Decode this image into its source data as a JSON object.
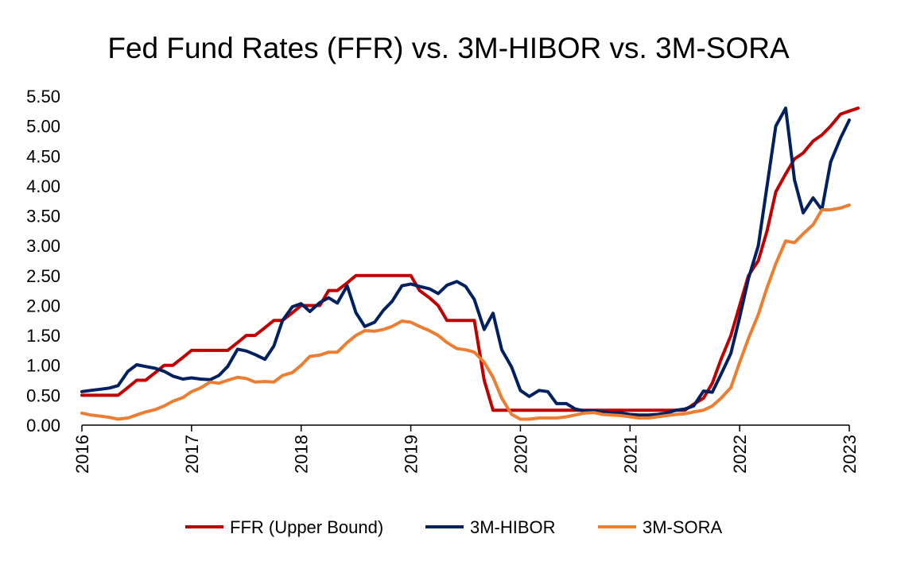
{
  "chart_data": {
    "type": "line",
    "title": "Fed Fund Rates (FFR) vs. 3M-HIBOR vs. 3M-SORA",
    "xlabel": "",
    "ylabel": "",
    "ylim": [
      0,
      5.5
    ],
    "yticks": [
      "0.00",
      "0.50",
      "1.00",
      "1.50",
      "2.00",
      "2.50",
      "3.00",
      "3.50",
      "4.00",
      "4.50",
      "5.00",
      "5.50"
    ],
    "xlim": [
      2016,
      2023
    ],
    "xticks": [
      "2016",
      "2017",
      "2018",
      "2019",
      "2020",
      "2021",
      "2022",
      "2023"
    ],
    "grid": false,
    "legend_position": "bottom",
    "series": [
      {
        "name": "FFR (Upper Bound)",
        "color": "#C00000",
        "points": [
          [
            2016.0,
            0.5
          ],
          [
            2016.33,
            0.5
          ],
          [
            2016.42,
            0.63
          ],
          [
            2016.5,
            0.75
          ],
          [
            2016.58,
            0.75
          ],
          [
            2016.67,
            0.88
          ],
          [
            2016.75,
            1.0
          ],
          [
            2016.83,
            1.0
          ],
          [
            2016.92,
            1.13
          ],
          [
            2017.0,
            1.25
          ],
          [
            2017.33,
            1.25
          ],
          [
            2017.42,
            1.38
          ],
          [
            2017.5,
            1.5
          ],
          [
            2017.58,
            1.5
          ],
          [
            2017.67,
            1.63
          ],
          [
            2017.75,
            1.75
          ],
          [
            2017.83,
            1.75
          ],
          [
            2017.92,
            1.88
          ],
          [
            2018.0,
            2.0
          ],
          [
            2018.17,
            2.0
          ],
          [
            2018.25,
            2.25
          ],
          [
            2018.33,
            2.25
          ],
          [
            2018.42,
            2.38
          ],
          [
            2018.5,
            2.5
          ],
          [
            2019.0,
            2.5
          ],
          [
            2019.08,
            2.25
          ],
          [
            2019.17,
            2.13
          ],
          [
            2019.25,
            2.0
          ],
          [
            2019.33,
            1.75
          ],
          [
            2019.58,
            1.75
          ],
          [
            2019.67,
            0.75
          ],
          [
            2019.75,
            0.25
          ],
          [
            2021.5,
            0.25
          ],
          [
            2021.58,
            0.35
          ],
          [
            2021.67,
            0.45
          ],
          [
            2021.75,
            0.7
          ],
          [
            2021.83,
            1.1
          ],
          [
            2021.92,
            1.5
          ],
          [
            2022.0,
            2.0
          ],
          [
            2022.08,
            2.5
          ],
          [
            2022.17,
            2.75
          ],
          [
            2022.25,
            3.25
          ],
          [
            2022.33,
            3.9
          ],
          [
            2022.42,
            4.2
          ],
          [
            2022.5,
            4.45
          ],
          [
            2022.58,
            4.55
          ],
          [
            2022.67,
            4.75
          ],
          [
            2022.75,
            4.85
          ],
          [
            2022.83,
            5.0
          ],
          [
            2022.92,
            5.2
          ],
          [
            2023.0,
            5.25
          ],
          [
            2023.08,
            5.3
          ]
        ]
      },
      {
        "name": "3M-HIBOR",
        "color": "#002060",
        "points": [
          [
            2016.0,
            0.56
          ],
          [
            2016.08,
            0.58
          ],
          [
            2016.17,
            0.6
          ],
          [
            2016.25,
            0.62
          ],
          [
            2016.33,
            0.66
          ],
          [
            2016.42,
            0.9
          ],
          [
            2016.5,
            1.01
          ],
          [
            2016.58,
            0.98
          ],
          [
            2016.67,
            0.95
          ],
          [
            2016.75,
            0.9
          ],
          [
            2016.83,
            0.82
          ],
          [
            2016.92,
            0.77
          ],
          [
            2017.0,
            0.79
          ],
          [
            2017.08,
            0.77
          ],
          [
            2017.17,
            0.76
          ],
          [
            2017.25,
            0.83
          ],
          [
            2017.33,
            0.98
          ],
          [
            2017.42,
            1.27
          ],
          [
            2017.5,
            1.24
          ],
          [
            2017.58,
            1.18
          ],
          [
            2017.67,
            1.1
          ],
          [
            2017.75,
            1.32
          ],
          [
            2017.83,
            1.75
          ],
          [
            2017.92,
            1.98
          ],
          [
            2018.0,
            2.03
          ],
          [
            2018.08,
            1.9
          ],
          [
            2018.17,
            2.05
          ],
          [
            2018.25,
            2.13
          ],
          [
            2018.33,
            2.04
          ],
          [
            2018.42,
            2.33
          ],
          [
            2018.5,
            1.88
          ],
          [
            2018.58,
            1.65
          ],
          [
            2018.67,
            1.72
          ],
          [
            2018.75,
            1.92
          ],
          [
            2018.83,
            2.07
          ],
          [
            2018.92,
            2.33
          ],
          [
            2019.0,
            2.36
          ],
          [
            2019.08,
            2.32
          ],
          [
            2019.17,
            2.28
          ],
          [
            2019.25,
            2.2
          ],
          [
            2019.33,
            2.34
          ],
          [
            2019.42,
            2.4
          ],
          [
            2019.5,
            2.32
          ],
          [
            2019.58,
            2.1
          ],
          [
            2019.67,
            1.6
          ],
          [
            2019.75,
            1.87
          ],
          [
            2019.83,
            1.26
          ],
          [
            2019.92,
            0.97
          ],
          [
            2020.0,
            0.58
          ],
          [
            2020.08,
            0.48
          ],
          [
            2020.17,
            0.58
          ],
          [
            2020.25,
            0.56
          ],
          [
            2020.33,
            0.36
          ],
          [
            2020.42,
            0.36
          ],
          [
            2020.5,
            0.27
          ],
          [
            2020.58,
            0.24
          ],
          [
            2020.67,
            0.24
          ],
          [
            2020.75,
            0.22
          ],
          [
            2020.83,
            0.2
          ],
          [
            2020.92,
            0.2
          ],
          [
            2021.0,
            0.18
          ],
          [
            2021.08,
            0.17
          ],
          [
            2021.17,
            0.17
          ],
          [
            2021.25,
            0.18
          ],
          [
            2021.33,
            0.2
          ],
          [
            2021.42,
            0.25
          ],
          [
            2021.5,
            0.27
          ],
          [
            2021.58,
            0.32
          ],
          [
            2021.67,
            0.57
          ],
          [
            2021.75,
            0.55
          ],
          [
            2021.83,
            0.85
          ],
          [
            2021.92,
            1.2
          ],
          [
            2022.0,
            1.8
          ],
          [
            2022.08,
            2.45
          ],
          [
            2022.17,
            3.0
          ],
          [
            2022.25,
            4.0
          ],
          [
            2022.33,
            5.0
          ],
          [
            2022.42,
            5.3
          ],
          [
            2022.5,
            4.1
          ],
          [
            2022.58,
            3.55
          ],
          [
            2022.67,
            3.8
          ],
          [
            2022.75,
            3.6
          ],
          [
            2022.83,
            4.4
          ],
          [
            2022.92,
            4.8
          ],
          [
            2023.0,
            5.1
          ]
        ]
      },
      {
        "name": "3M-SORA",
        "color": "#ED7D31",
        "points": [
          [
            2016.0,
            0.2
          ],
          [
            2016.08,
            0.17
          ],
          [
            2016.17,
            0.15
          ],
          [
            2016.25,
            0.13
          ],
          [
            2016.33,
            0.1
          ],
          [
            2016.42,
            0.12
          ],
          [
            2016.5,
            0.17
          ],
          [
            2016.58,
            0.22
          ],
          [
            2016.67,
            0.26
          ],
          [
            2016.75,
            0.32
          ],
          [
            2016.83,
            0.4
          ],
          [
            2016.92,
            0.46
          ],
          [
            2017.0,
            0.56
          ],
          [
            2017.08,
            0.62
          ],
          [
            2017.17,
            0.72
          ],
          [
            2017.25,
            0.7
          ],
          [
            2017.33,
            0.75
          ],
          [
            2017.42,
            0.8
          ],
          [
            2017.5,
            0.78
          ],
          [
            2017.58,
            0.72
          ],
          [
            2017.67,
            0.73
          ],
          [
            2017.75,
            0.72
          ],
          [
            2017.83,
            0.83
          ],
          [
            2017.92,
            0.88
          ],
          [
            2018.0,
            1.0
          ],
          [
            2018.08,
            1.15
          ],
          [
            2018.17,
            1.17
          ],
          [
            2018.25,
            1.22
          ],
          [
            2018.33,
            1.22
          ],
          [
            2018.42,
            1.38
          ],
          [
            2018.5,
            1.5
          ],
          [
            2018.58,
            1.58
          ],
          [
            2018.67,
            1.57
          ],
          [
            2018.75,
            1.6
          ],
          [
            2018.83,
            1.65
          ],
          [
            2018.92,
            1.74
          ],
          [
            2019.0,
            1.72
          ],
          [
            2019.08,
            1.65
          ],
          [
            2019.17,
            1.58
          ],
          [
            2019.25,
            1.5
          ],
          [
            2019.33,
            1.38
          ],
          [
            2019.42,
            1.28
          ],
          [
            2019.5,
            1.26
          ],
          [
            2019.58,
            1.22
          ],
          [
            2019.67,
            1.05
          ],
          [
            2019.75,
            0.8
          ],
          [
            2019.83,
            0.45
          ],
          [
            2019.92,
            0.18
          ],
          [
            2020.0,
            0.1
          ],
          [
            2020.08,
            0.1
          ],
          [
            2020.17,
            0.12
          ],
          [
            2020.25,
            0.12
          ],
          [
            2020.33,
            0.12
          ],
          [
            2020.42,
            0.14
          ],
          [
            2020.5,
            0.17
          ],
          [
            2020.58,
            0.2
          ],
          [
            2020.67,
            0.21
          ],
          [
            2020.75,
            0.18
          ],
          [
            2020.83,
            0.17
          ],
          [
            2020.92,
            0.16
          ],
          [
            2021.0,
            0.14
          ],
          [
            2021.08,
            0.12
          ],
          [
            2021.17,
            0.12
          ],
          [
            2021.25,
            0.14
          ],
          [
            2021.33,
            0.16
          ],
          [
            2021.42,
            0.18
          ],
          [
            2021.5,
            0.19
          ],
          [
            2021.58,
            0.22
          ],
          [
            2021.67,
            0.25
          ],
          [
            2021.75,
            0.32
          ],
          [
            2021.83,
            0.45
          ],
          [
            2021.92,
            0.63
          ],
          [
            2022.0,
            1.05
          ],
          [
            2022.08,
            1.45
          ],
          [
            2022.17,
            1.85
          ],
          [
            2022.25,
            2.3
          ],
          [
            2022.33,
            2.7
          ],
          [
            2022.42,
            3.08
          ],
          [
            2022.5,
            3.05
          ],
          [
            2022.58,
            3.2
          ],
          [
            2022.67,
            3.35
          ],
          [
            2022.75,
            3.6
          ],
          [
            2022.83,
            3.6
          ],
          [
            2022.92,
            3.63
          ],
          [
            2023.0,
            3.68
          ]
        ]
      }
    ]
  }
}
